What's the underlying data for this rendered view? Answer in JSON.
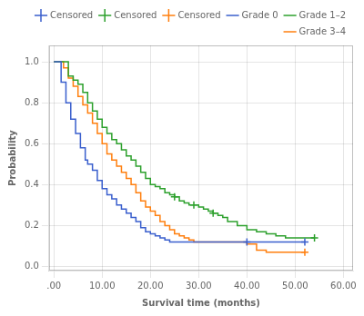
{
  "chart_data": {
    "type": "line",
    "x_label": "Survival time (months)",
    "y_label": "Probability",
    "xlim": [
      -1,
      62
    ],
    "ylim": [
      -0.02,
      1.08
    ],
    "xticks": [
      {
        "value": 0,
        "label": ".00"
      },
      {
        "value": 10,
        "label": "10.00"
      },
      {
        "value": 20,
        "label": "20.00"
      },
      {
        "value": 30,
        "label": "30.00"
      },
      {
        "value": 40,
        "label": "40.00"
      },
      {
        "value": 50,
        "label": "50.00"
      },
      {
        "value": 60,
        "label": "60.00"
      }
    ],
    "yticks": [
      {
        "value": 0,
        "label": "0.0"
      },
      0.2,
      0.4,
      0.6,
      0.8,
      {
        "value": 1,
        "label": "1.0"
      }
    ],
    "grid": true,
    "legend": "upper right",
    "series": [
      {
        "name": "Grade 0",
        "type": "line",
        "line_style": "step",
        "color": "#3a5fcd",
        "x": [
          0,
          1.5,
          2.5,
          3.5,
          4.5,
          5.5,
          6.5,
          7,
          8,
          9,
          10,
          11,
          12,
          13,
          14,
          15,
          16,
          17,
          18,
          19,
          20,
          21,
          22,
          23,
          24,
          25,
          26,
          27,
          28,
          40,
          52
        ],
        "values": [
          1.0,
          0.9,
          0.8,
          0.72,
          0.65,
          0.58,
          0.52,
          0.5,
          0.47,
          0.42,
          0.38,
          0.35,
          0.33,
          0.3,
          0.28,
          0.26,
          0.24,
          0.22,
          0.19,
          0.17,
          0.16,
          0.15,
          0.14,
          0.13,
          0.12,
          0.12,
          0.12,
          0.12,
          0.12,
          0.12,
          0.12
        ]
      },
      {
        "name": "Grade 1–2",
        "type": "line",
        "line_style": "step",
        "color": "#2ca02c",
        "x": [
          0,
          2,
          3,
          4,
          5,
          6,
          7,
          8,
          9,
          10,
          11,
          12,
          13,
          14,
          15,
          16,
          17,
          18,
          19,
          20,
          21,
          22,
          23,
          24,
          25,
          26,
          27,
          28,
          29,
          30,
          31,
          32,
          33,
          34,
          35,
          36,
          38,
          40,
          42,
          44,
          46,
          48,
          50,
          52,
          54
        ],
        "values": [
          1.0,
          1.0,
          0.93,
          0.91,
          0.89,
          0.85,
          0.8,
          0.76,
          0.72,
          0.68,
          0.65,
          0.62,
          0.6,
          0.57,
          0.54,
          0.52,
          0.49,
          0.46,
          0.43,
          0.4,
          0.39,
          0.38,
          0.36,
          0.35,
          0.34,
          0.32,
          0.31,
          0.3,
          0.3,
          0.29,
          0.28,
          0.27,
          0.26,
          0.25,
          0.24,
          0.22,
          0.2,
          0.18,
          0.17,
          0.16,
          0.15,
          0.14,
          0.14,
          0.14,
          0.14
        ]
      },
      {
        "name": "Grade 3–4",
        "type": "line",
        "line_style": "step",
        "color": "#ff7f0e",
        "x": [
          0,
          1,
          2,
          3,
          4,
          5,
          6,
          7,
          8,
          9,
          10,
          11,
          12,
          13,
          14,
          15,
          16,
          17,
          18,
          19,
          20,
          21,
          22,
          23,
          24,
          25,
          26,
          27,
          28,
          29,
          30,
          38,
          40,
          42,
          44,
          46,
          48,
          50,
          52
        ],
        "values": [
          1.0,
          1.0,
          0.97,
          0.92,
          0.88,
          0.83,
          0.79,
          0.75,
          0.7,
          0.65,
          0.6,
          0.55,
          0.52,
          0.49,
          0.46,
          0.43,
          0.4,
          0.36,
          0.32,
          0.29,
          0.27,
          0.25,
          0.22,
          0.2,
          0.18,
          0.16,
          0.15,
          0.14,
          0.13,
          0.12,
          0.12,
          0.12,
          0.11,
          0.08,
          0.07,
          0.07,
          0.07,
          0.07,
          0.07
        ]
      },
      {
        "name": "Censored",
        "type": "scatter",
        "marker": "plus",
        "color": "#3a5fcd",
        "x": [
          40,
          52
        ],
        "values": [
          0.12,
          0.12
        ]
      },
      {
        "name": "Censored",
        "type": "scatter",
        "marker": "plus",
        "color": "#2ca02c",
        "x": [
          25,
          29,
          33,
          54
        ],
        "values": [
          0.34,
          0.3,
          0.26,
          0.14
        ]
      },
      {
        "name": "Censored",
        "type": "scatter",
        "marker": "plus",
        "color": "#ff7f0e",
        "x": [
          52
        ],
        "values": [
          0.07
        ]
      }
    ]
  }
}
